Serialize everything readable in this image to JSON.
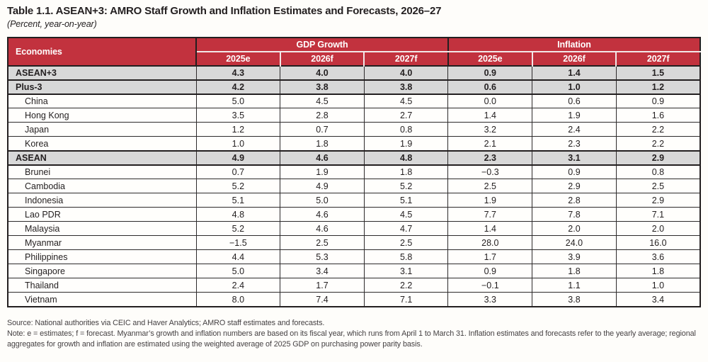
{
  "title": "Table 1.1. ASEAN+3: AMRO Staff Growth and Inflation Estimates and Forecasts, 2026–27",
  "subtitle": "(Percent, year-on-year)",
  "colors": {
    "header_red": "#c2323e",
    "aggregate_row_gray": "#d8d8d8",
    "border_dark": "#231f20",
    "header_text": "#ffffff"
  },
  "table": {
    "corner_header": "Economies",
    "groups": [
      {
        "label": "GDP Growth"
      },
      {
        "label": "Inflation"
      }
    ],
    "year_headers": [
      "2025e",
      "2026f",
      "2027f",
      "2025e",
      "2026f",
      "2027f"
    ],
    "rows": [
      {
        "economy": "ASEAN+3",
        "type": "aggregate",
        "values": [
          "4.3",
          "4.0",
          "4.0",
          "0.9",
          "1.4",
          "1.5"
        ]
      },
      {
        "economy": "Plus-3",
        "type": "aggregate",
        "values": [
          "4.2",
          "3.8",
          "3.8",
          "0.6",
          "1.0",
          "1.2"
        ]
      },
      {
        "economy": "China",
        "type": "country",
        "values": [
          "5.0",
          "4.5",
          "4.5",
          "0.0",
          "0.6",
          "0.9"
        ]
      },
      {
        "economy": "Hong Kong",
        "type": "country",
        "values": [
          "3.5",
          "2.8",
          "2.7",
          "1.4",
          "1.9",
          "1.6"
        ]
      },
      {
        "economy": "Japan",
        "type": "country",
        "values": [
          "1.2",
          "0.7",
          "0.8",
          "3.2",
          "2.4",
          "2.2"
        ]
      },
      {
        "economy": "Korea",
        "type": "country",
        "values": [
          "1.0",
          "1.8",
          "1.9",
          "2.1",
          "2.3",
          "2.2"
        ]
      },
      {
        "economy": "ASEAN",
        "type": "aggregate",
        "values": [
          "4.9",
          "4.6",
          "4.8",
          "2.3",
          "3.1",
          "2.9"
        ]
      },
      {
        "economy": "Brunei",
        "type": "country",
        "values": [
          "0.7",
          "1.9",
          "1.8",
          "−0.3",
          "0.9",
          "0.8"
        ]
      },
      {
        "economy": "Cambodia",
        "type": "country",
        "values": [
          "5.2",
          "4.9",
          "5.2",
          "2.5",
          "2.9",
          "2.5"
        ]
      },
      {
        "economy": "Indonesia",
        "type": "country",
        "values": [
          "5.1",
          "5.0",
          "5.1",
          "1.9",
          "2.8",
          "2.9"
        ]
      },
      {
        "economy": "Lao PDR",
        "type": "country",
        "values": [
          "4.8",
          "4.6",
          "4.5",
          "7.7",
          "7.8",
          "7.1"
        ]
      },
      {
        "economy": "Malaysia",
        "type": "country",
        "values": [
          "5.2",
          "4.6",
          "4.7",
          "1.4",
          "2.0",
          "2.0"
        ]
      },
      {
        "economy": "Myanmar",
        "type": "country",
        "values": [
          "−1.5",
          "2.5",
          "2.5",
          "28.0",
          "24.0",
          "16.0"
        ]
      },
      {
        "economy": "Philippines",
        "type": "country",
        "values": [
          "4.4",
          "5.3",
          "5.8",
          "1.7",
          "3.9",
          "3.6"
        ]
      },
      {
        "economy": "Singapore",
        "type": "country",
        "values": [
          "5.0",
          "3.4",
          "3.1",
          "0.9",
          "1.8",
          "1.8"
        ]
      },
      {
        "economy": "Thailand",
        "type": "country",
        "values": [
          "2.4",
          "1.7",
          "2.2",
          "−0.1",
          "1.1",
          "1.0"
        ]
      },
      {
        "economy": "Vietnam",
        "type": "country",
        "values": [
          "8.0",
          "7.4",
          "7.1",
          "3.3",
          "3.8",
          "3.4"
        ]
      }
    ]
  },
  "notes": {
    "source": "Source: National authorities via CEIC and Haver Analytics; AMRO staff estimates and forecasts.",
    "note": "Note: e = estimates; f = forecast. Myanmar’s growth and inflation numbers are based on its fiscal year, which runs from April 1 to March 31. Inflation estimates and forecasts refer to the yearly average; regional aggregates for growth and inflation are estimated using the weighted average of 2025 GDP on purchasing power parity basis."
  }
}
